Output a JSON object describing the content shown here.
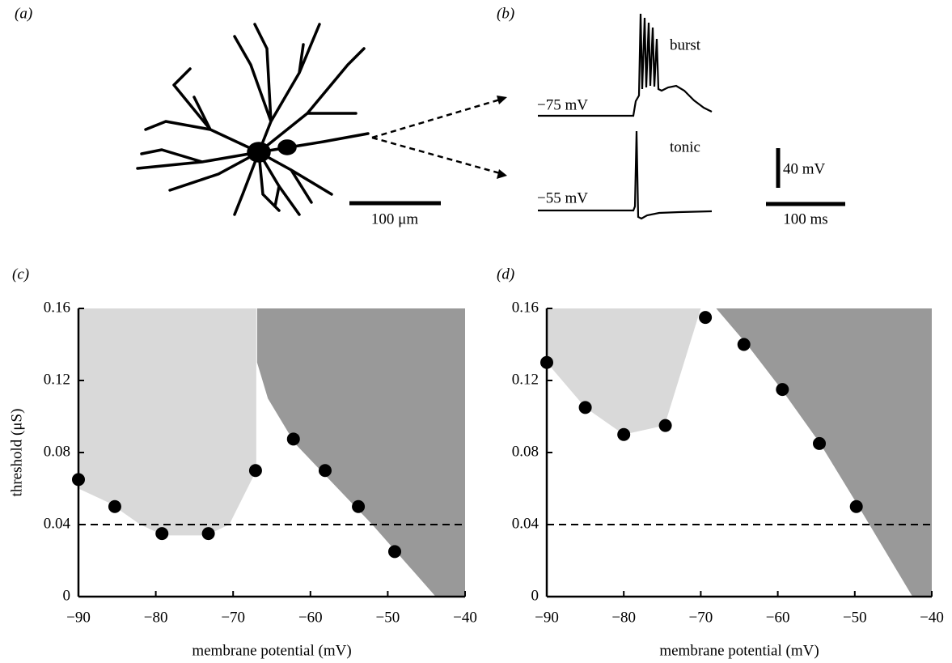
{
  "panel_a": {
    "label": "(a)",
    "scale": "100 μm"
  },
  "panel_b": {
    "label": "(b)",
    "traces": [
      {
        "name": "burst",
        "level": "−75 mV"
      },
      {
        "name": "tonic",
        "level": "−55 mV"
      }
    ],
    "scale_y": "40 mV",
    "scale_x": "100 ms"
  },
  "chart_data": [
    {
      "type": "scatter",
      "panel_label": "(c)",
      "x_label": "membrane potential (mV)",
      "y_label": "threshold (μS)",
      "xlim": [
        -90,
        -40
      ],
      "ylim": [
        0,
        0.16
      ],
      "xticks": [
        {
          "value": -90,
          "label": "−90"
        },
        {
          "value": -80,
          "label": "−80"
        },
        {
          "value": -70,
          "label": "−70"
        },
        {
          "value": -60,
          "label": "−60"
        },
        {
          "value": -50,
          "label": "−50"
        },
        {
          "value": -40,
          "label": "−40"
        }
      ],
      "yticks": [
        0,
        0.04,
        0.08,
        0.12,
        0.16
      ],
      "x": [
        -90,
        -85.3,
        -79.2,
        -73.2,
        -67.1,
        -62.2,
        -58.1,
        -53.8,
        -49.1
      ],
      "values": [
        0.065,
        0.05,
        0.035,
        0.035,
        0.07,
        0.0875,
        0.07,
        0.05,
        0.025
      ],
      "color": "#000000",
      "hline": 0.04,
      "regions": [
        {
          "color": "#d9d9d9",
          "x": [
            -90,
            -67,
            -67,
            -70.5,
            -73.5,
            -79,
            -82,
            -86,
            -90
          ],
          "y": [
            0.16,
            0.16,
            0.07,
            0.04,
            0.034,
            0.034,
            0.04,
            0.052,
            0.06
          ]
        },
        {
          "color": "#999999",
          "x": [
            -66.9,
            -40,
            -40,
            -43.8,
            -52,
            -62,
            -65.5,
            -66.9
          ],
          "y": [
            0.16,
            0.16,
            0,
            0,
            0.04,
            0.085,
            0.11,
            0.13
          ]
        }
      ]
    },
    {
      "type": "scatter",
      "panel_label": "(d)",
      "x_label": "membrane potential (mV)",
      "xlim": [
        -90,
        -40
      ],
      "ylim": [
        0,
        0.16
      ],
      "xticks": [
        {
          "value": -90,
          "label": "−90"
        },
        {
          "value": -80,
          "label": "−80"
        },
        {
          "value": -70,
          "label": "−70"
        },
        {
          "value": -60,
          "label": "−60"
        },
        {
          "value": -50,
          "label": "−50"
        },
        {
          "value": -40,
          "label": "−40"
        }
      ],
      "yticks": [
        0,
        0.04,
        0.08,
        0.12,
        0.16
      ],
      "x": [
        -90,
        -85,
        -80,
        -74.6,
        -69.4,
        -64.4,
        -59.4,
        -54.6,
        -49.8
      ],
      "values": [
        0.13,
        0.105,
        0.09,
        0.095,
        0.155,
        0.14,
        0.115,
        0.085,
        0.05
      ],
      "color": "#000000",
      "hline": 0.04,
      "regions": [
        {
          "color": "#d9d9d9",
          "x": [
            -90,
            -70,
            -74.7,
            -80,
            -85,
            -90
          ],
          "y": [
            0.16,
            0.16,
            0.095,
            0.09,
            0.105,
            0.13
          ]
        },
        {
          "color": "#999999",
          "x": [
            -68,
            -40,
            -40,
            -42.5,
            -49.5,
            -54.5,
            -59.5,
            -64
          ],
          "y": [
            0.16,
            0.16,
            0,
            0,
            0.05,
            0.085,
            0.115,
            0.14
          ]
        }
      ]
    }
  ]
}
